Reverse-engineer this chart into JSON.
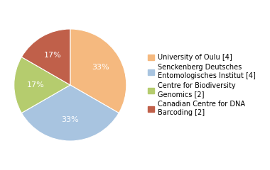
{
  "labels": [
    "University of Oulu [4]",
    "Senckenberg Deutsches\nEntomologisches Institut [4]",
    "Centre for Biodiversity\nGenomics [2]",
    "Canadian Centre for DNA\nBarcoding [2]"
  ],
  "values": [
    4,
    4,
    2,
    2
  ],
  "colors": [
    "#f5b97f",
    "#a8c4e0",
    "#b5cc6e",
    "#c0604a"
  ],
  "autopct_fontsize": 8,
  "legend_fontsize": 7,
  "background_color": "#ffffff",
  "startangle": 90
}
